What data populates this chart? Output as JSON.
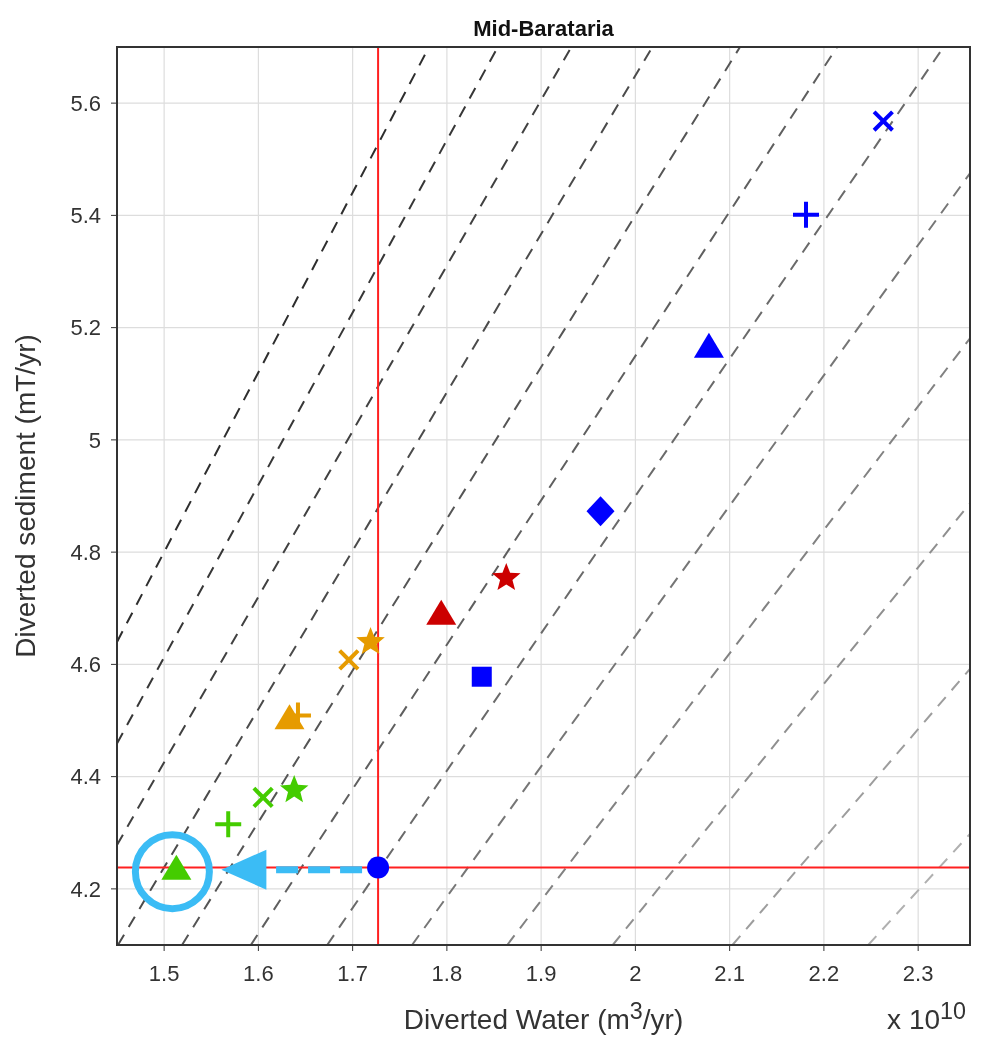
{
  "chart_data": {
    "type": "scatter",
    "title": "Mid-Barataria",
    "xlabel": "Diverted Water (m$^{3}$/yr)",
    "ylabel": "Diverted sediment (mT/yr)",
    "annotations": [
      "x 10$^{10}$"
    ],
    "xlim": [
      1.45,
      2.355
    ],
    "xticks": [
      1.5,
      1.6,
      1.7,
      1.8,
      1.9,
      2,
      2.1,
      2.2,
      2.3
    ],
    "ylim": [
      4.1,
      5.7
    ],
    "yticks": [
      4.2,
      4.4,
      4.6,
      4.8,
      5,
      5.2,
      5.4,
      5.6
    ],
    "grid": true,
    "ref_lines": [
      {
        "axis": "x",
        "value": 1.727,
        "color": "#ff2020"
      },
      {
        "axis": "y",
        "value": 4.238,
        "color": "#ff2020"
      }
    ],
    "series": [
      {
        "type": "line",
        "line_style": "dashed",
        "marker": "none",
        "color": "#2e2e2e",
        "x": [
          1.45,
          1.781
        ],
        "values": [
          4.64,
          5.7
        ]
      },
      {
        "type": "line",
        "line_style": "dashed",
        "marker": "none",
        "color": "#373737",
        "x": [
          1.45,
          1.854
        ],
        "values": [
          4.459,
          5.7
        ]
      },
      {
        "type": "line",
        "line_style": "dashed",
        "marker": "none",
        "color": "#414141",
        "x": [
          1.45,
          1.932
        ],
        "values": [
          4.278,
          5.7
        ]
      },
      {
        "type": "line",
        "line_style": "dashed",
        "marker": "none",
        "color": "#4b4b4b",
        "x": [
          1.451,
          2.018
        ],
        "values": [
          4.1,
          5.7
        ]
      },
      {
        "type": "line",
        "line_style": "dashed",
        "marker": "none",
        "color": "#555555",
        "x": [
          1.519,
          2.111
        ],
        "values": [
          4.1,
          5.7
        ]
      },
      {
        "type": "line",
        "line_style": "dashed",
        "marker": "none",
        "color": "#5f5f5f",
        "x": [
          1.592,
          2.214
        ],
        "values": [
          4.1,
          5.7
        ]
      },
      {
        "type": "line",
        "line_style": "dashed",
        "marker": "none",
        "color": "#6a6a6a",
        "x": [
          1.673,
          2.327
        ],
        "values": [
          4.1,
          5.7
        ]
      },
      {
        "type": "line",
        "line_style": "dashed",
        "marker": "none",
        "color": "#767676",
        "x": [
          1.763,
          2.355
        ],
        "values": [
          4.1,
          5.475
        ]
      },
      {
        "type": "line",
        "line_style": "dashed",
        "marker": "none",
        "color": "#828282",
        "x": [
          1.864,
          2.355
        ],
        "values": [
          4.1,
          5.181
        ]
      },
      {
        "type": "line",
        "line_style": "dashed",
        "marker": "none",
        "color": "#8f8f8f",
        "x": [
          1.976,
          2.355
        ],
        "values": [
          4.1,
          4.887
        ]
      },
      {
        "type": "line",
        "line_style": "dashed",
        "marker": "none",
        "color": "#9d9d9d",
        "x": [
          2.103,
          2.355
        ],
        "values": [
          4.1,
          4.592
        ]
      },
      {
        "type": "line",
        "line_style": "dashed",
        "marker": "none",
        "color": "#b0b0b0",
        "x": [
          2.247,
          2.355
        ],
        "values": [
          4.1,
          4.298
        ]
      },
      {
        "marker": "triangle",
        "color": "#44cc00",
        "x": [
          1.513
        ],
        "values": [
          4.236
        ]
      },
      {
        "marker": "cross",
        "color": "#44cc00",
        "x": [
          1.568
        ],
        "values": [
          4.315
        ]
      },
      {
        "marker": "cross",
        "color": "#44cc00",
        "x": [
          1.605
        ],
        "values": [
          4.363
        ]
      },
      {
        "marker": "star",
        "color": "#44cc00",
        "x": [
          1.638
        ],
        "values": [
          4.376
        ]
      },
      {
        "marker": "triangle",
        "color": "#e69b00",
        "x": [
          1.633
        ],
        "values": [
          4.504
        ]
      },
      {
        "marker": "cross",
        "color": "#e69b00",
        "x": [
          1.642
        ],
        "values": [
          4.509
        ]
      },
      {
        "marker": "cross",
        "color": "#e69b00",
        "x": [
          1.696
        ],
        "values": [
          4.608
        ]
      },
      {
        "marker": "star",
        "color": "#e69b00",
        "x": [
          1.719
        ],
        "values": [
          4.64
        ]
      },
      {
        "marker": "triangle",
        "color": "#cc0000",
        "x": [
          1.794
        ],
        "values": [
          4.69
        ]
      },
      {
        "marker": "star",
        "color": "#cc0000",
        "x": [
          1.863
        ],
        "values": [
          4.754
        ]
      },
      {
        "marker": "circle",
        "color": "#0000ff",
        "x": [
          1.727
        ],
        "values": [
          4.238
        ]
      },
      {
        "marker": "square",
        "color": "#0000ff",
        "x": [
          1.837
        ],
        "values": [
          4.578
        ]
      },
      {
        "marker": "diamond",
        "color": "#0000ff",
        "x": [
          1.963
        ],
        "values": [
          4.873
        ]
      },
      {
        "marker": "triangle",
        "color": "#0000ff",
        "x": [
          2.078
        ],
        "values": [
          5.166
        ]
      },
      {
        "marker": "cross",
        "color": "#0000ff",
        "x": [
          2.181
        ],
        "values": [
          5.401
        ]
      },
      {
        "marker": "cross",
        "color": "#0000ff",
        "x": [
          2.263
        ],
        "values": [
          5.568
        ]
      }
    ]
  }
}
